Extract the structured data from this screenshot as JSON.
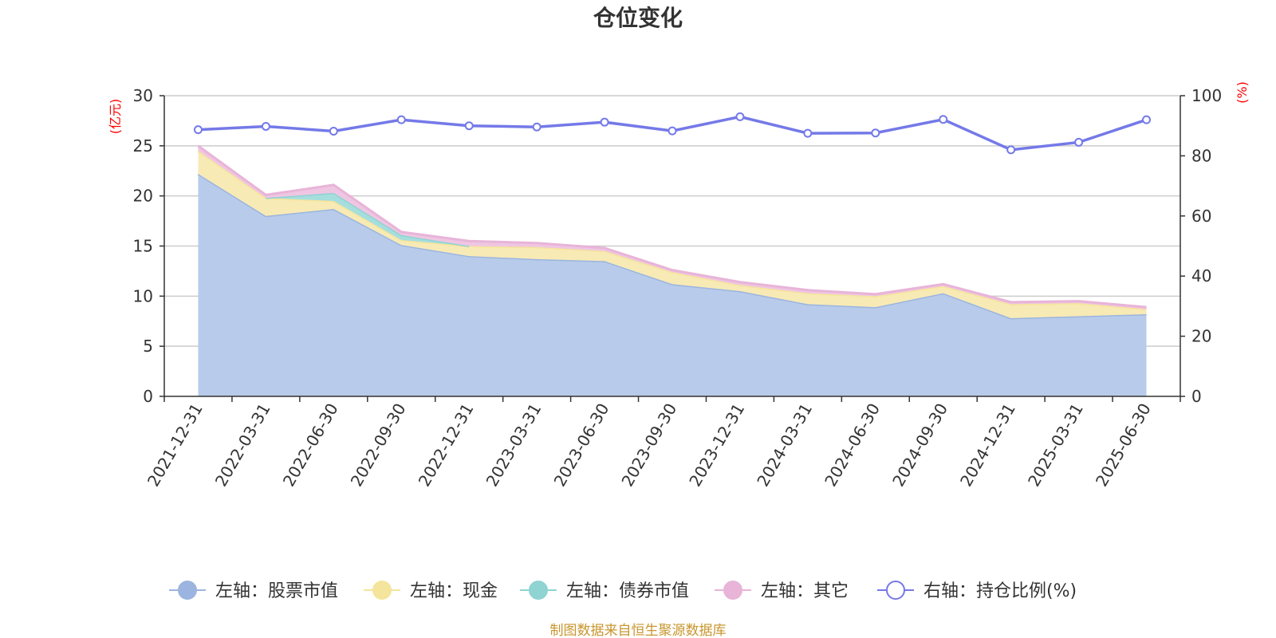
{
  "title": "仓位变化",
  "source_note": "制图数据来自恒生聚源数据库",
  "y_left_unit": "(亿元)",
  "y_right_unit": "(%)",
  "chart_data": {
    "type": "area",
    "categories": [
      "2021-12-31",
      "2022-03-31",
      "2022-06-30",
      "2022-09-30",
      "2022-12-31",
      "2023-03-31",
      "2023-06-30",
      "2023-09-30",
      "2023-12-31",
      "2024-03-31",
      "2024-06-30",
      "2024-09-30",
      "2024-12-31",
      "2025-03-31",
      "2025-06-30"
    ],
    "y_left": {
      "min": 0,
      "max": 30,
      "ticks": [
        0,
        5,
        10,
        15,
        20,
        25,
        30
      ]
    },
    "y_right": {
      "min": 0,
      "max": 100,
      "ticks": [
        0,
        20,
        40,
        60,
        80,
        100
      ]
    },
    "stacked_series": [
      {
        "name": "左轴：股票市值",
        "color": "#9bb5e0",
        "fill": "#b8cbea",
        "values": [
          22.2,
          18.0,
          18.7,
          15.1,
          14.0,
          13.7,
          13.5,
          11.2,
          10.5,
          9.2,
          8.9,
          10.3,
          7.8,
          8.0,
          8.2
        ]
      },
      {
        "name": "左轴：现金",
        "color": "#f5e49b",
        "fill": "#f8eab5",
        "values": [
          2.3,
          1.8,
          0.8,
          0.5,
          1.0,
          1.2,
          1.0,
          1.2,
          0.6,
          1.1,
          1.1,
          0.7,
          1.4,
          1.3,
          0.5
        ]
      },
      {
        "name": "左轴：债券市值",
        "color": "#8fd3d3",
        "fill": "#a6dede",
        "values": [
          0,
          0,
          0.8,
          0.5,
          0,
          0,
          0,
          0,
          0,
          0,
          0,
          0,
          0,
          0,
          0
        ]
      },
      {
        "name": "左轴：其它",
        "color": "#e8b4d8",
        "fill": "#efc6e2",
        "values": [
          0.5,
          0.3,
          0.8,
          0.3,
          0.5,
          0.4,
          0.3,
          0.2,
          0.3,
          0.3,
          0.2,
          0.2,
          0.2,
          0.2,
          0.2
        ]
      }
    ],
    "line_series": {
      "name": "右轴：持仓比例(%)",
      "color": "#7479e8",
      "values": [
        88.7,
        89.8,
        88.2,
        92.0,
        90.0,
        89.6,
        91.2,
        88.3,
        93.0,
        87.5,
        87.6,
        92.1,
        82.0,
        84.5,
        92.0
      ]
    }
  }
}
